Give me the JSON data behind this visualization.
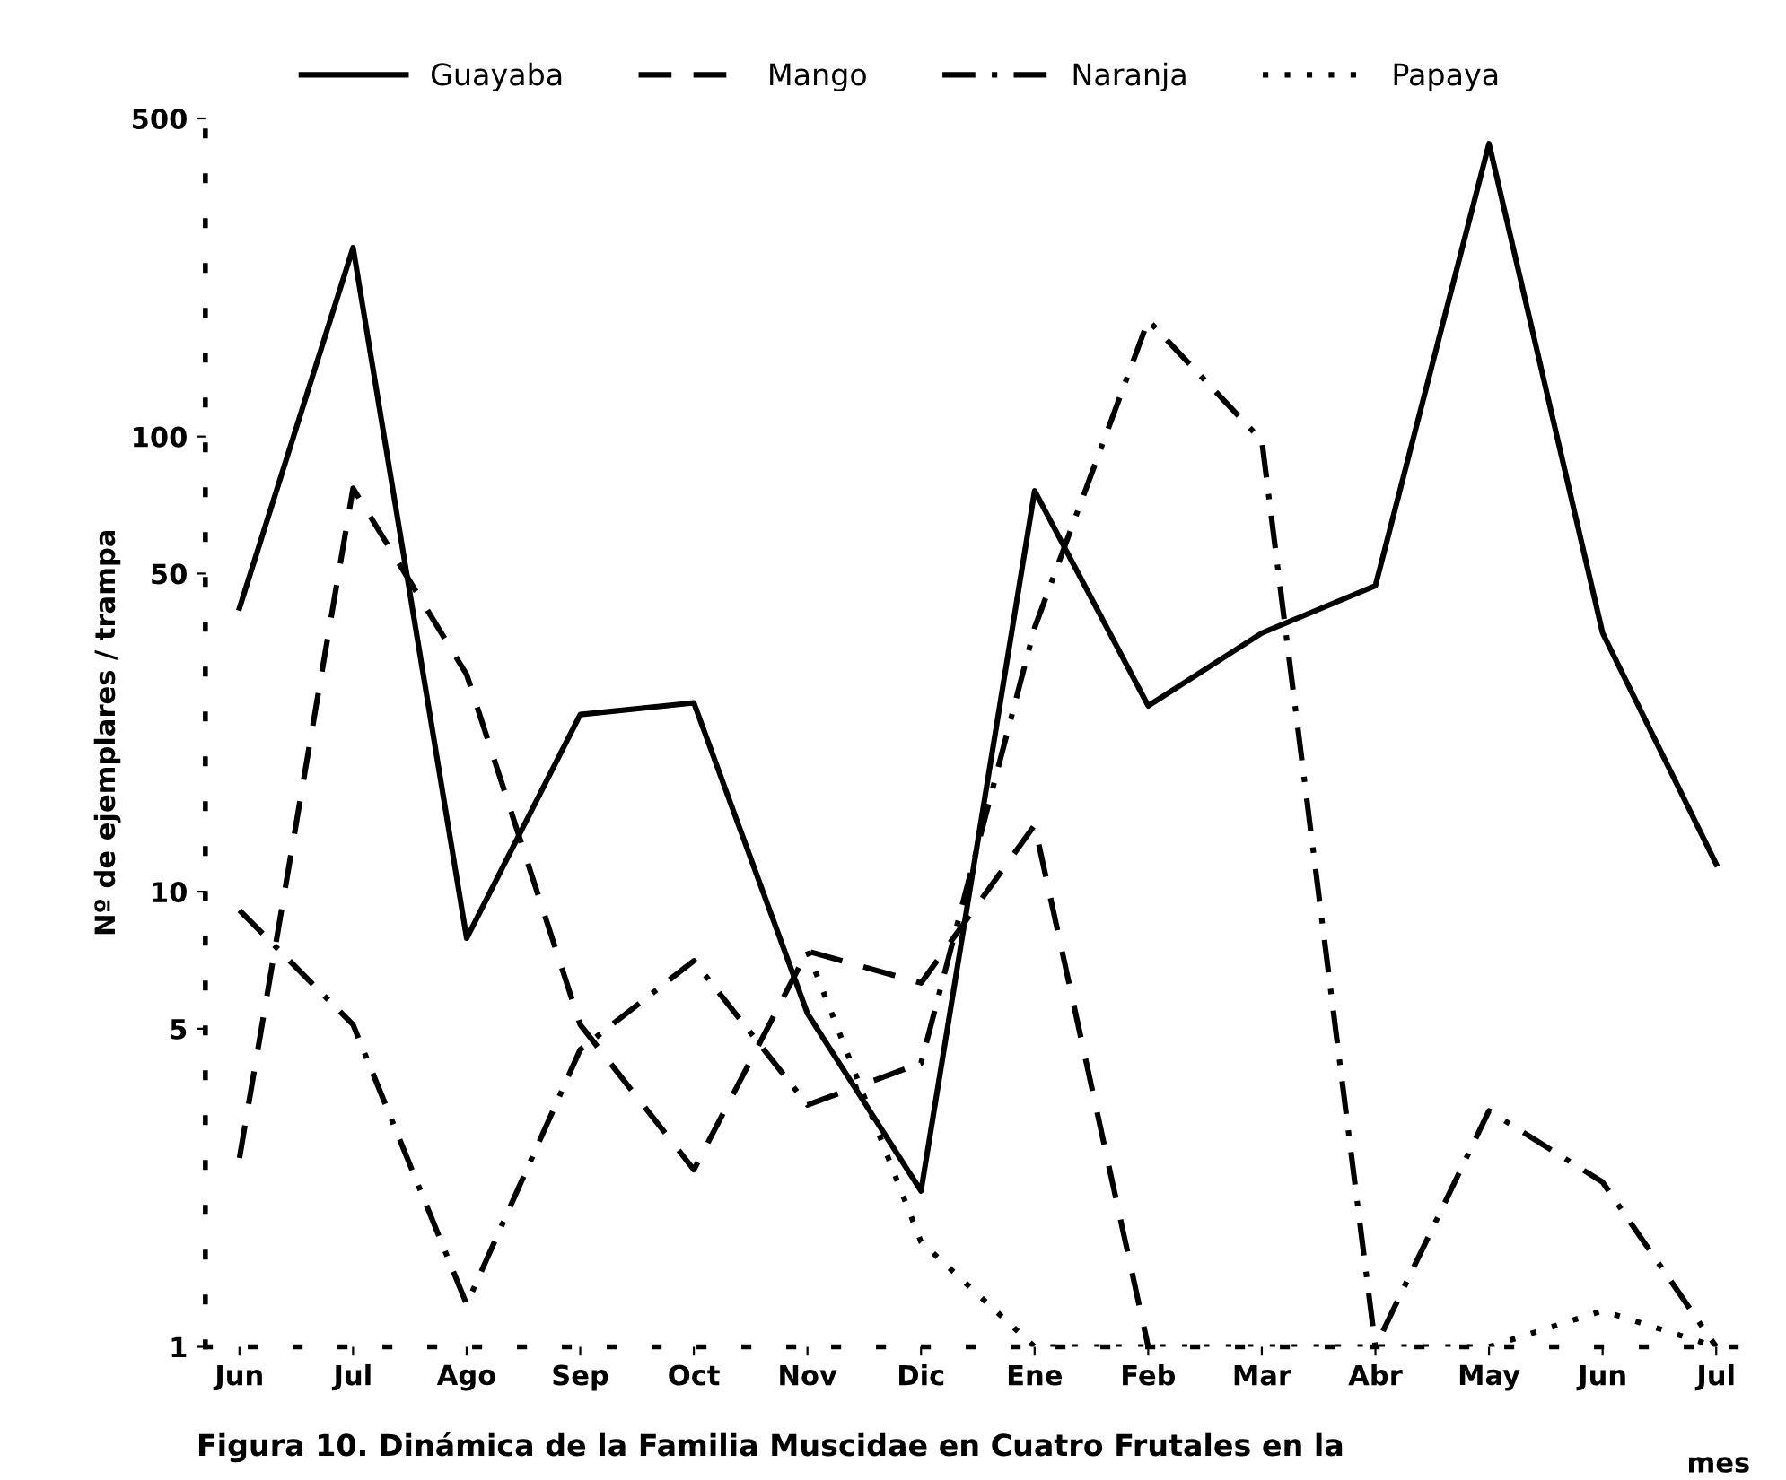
{
  "chart_data": {
    "type": "line",
    "categories": [
      "Jun",
      "Jul",
      "Ago",
      "Sep",
      "Oct",
      "Nov",
      "Dic",
      "Ene",
      "Feb",
      "Mar",
      "Abr",
      "May",
      "Jun",
      "Jul"
    ],
    "series": [
      {
        "name": "Guayaba",
        "color": "#000000",
        "line_style": "solid",
        "values": [
          42,
          260,
          7.9,
          24.5,
          26,
          5.4,
          2.2,
          76,
          25.6,
          37,
          47,
          440,
          37,
          11.5
        ]
      },
      {
        "name": "Mango",
        "color": "#000000",
        "line_style": "dashed",
        "values": [
          2.6,
          77,
          30,
          5.1,
          2.45,
          7.4,
          6.3,
          14,
          1,
          null,
          null,
          null,
          null,
          null
        ]
      },
      {
        "name": "Naranja",
        "color": "#000000",
        "line_style": "dashdot",
        "values": [
          9.1,
          5.1,
          1.24,
          4.5,
          7.05,
          3.4,
          4.2,
          38,
          180,
          98,
          1,
          3.3,
          2.3,
          1
        ]
      },
      {
        "name": "Papaya",
        "color": "#000000",
        "line_style": "dotted",
        "values": [
          null,
          null,
          null,
          null,
          null,
          7.4,
          1.7,
          1,
          1,
          1,
          1,
          1,
          1.2,
          1
        ]
      }
    ],
    "log": "y",
    "ylim": [
      1,
      500
    ],
    "yticks": [
      1,
      5,
      10,
      50,
      100,
      500
    ],
    "ylabel": "Nº de ejemplares / trampa",
    "xlabel": "mes",
    "legend": "top",
    "grid": false,
    "marker": "none",
    "annotations": [
      "Figura 10. Dinámica de la Familia Muscidae en Cuatro Frutales en la"
    ]
  }
}
